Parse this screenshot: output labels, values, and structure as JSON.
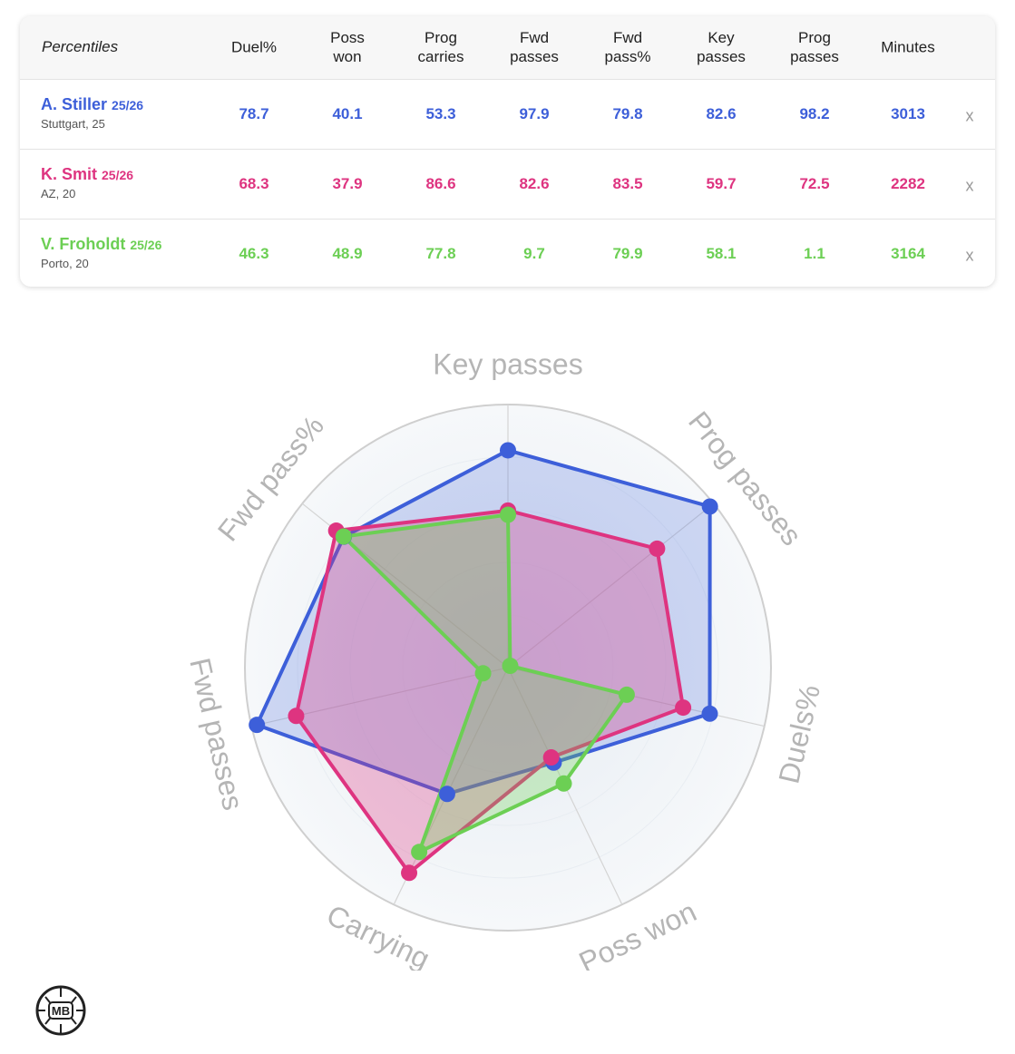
{
  "table": {
    "header_label": "Percentiles",
    "columns": [
      [
        "Duel%"
      ],
      [
        "Poss",
        "won"
      ],
      [
        "Prog",
        "carries"
      ],
      [
        "Fwd",
        "passes"
      ],
      [
        "Fwd",
        "pass%"
      ],
      [
        "Key",
        "passes"
      ],
      [
        "Prog",
        "passes"
      ],
      [
        "Minutes"
      ]
    ],
    "remove_label": "x",
    "players": [
      {
        "name": "A. Stiller",
        "season": "25/26",
        "info": "Stuttgart, 25",
        "color": "#3d5fd9",
        "values": [
          "78.7",
          "40.1",
          "53.3",
          "97.9",
          "79.8",
          "82.6",
          "98.2",
          "3013"
        ]
      },
      {
        "name": "K. Smit",
        "season": "25/26",
        "info": "AZ, 20",
        "color": "#de3480",
        "values": [
          "68.3",
          "37.9",
          "86.6",
          "82.6",
          "83.5",
          "59.7",
          "72.5",
          "2282"
        ]
      },
      {
        "name": "V. Froholdt",
        "season": "25/26",
        "info": "Porto, 20",
        "color": "#6ccf54",
        "values": [
          "46.3",
          "48.9",
          "77.8",
          "9.7",
          "79.9",
          "58.1",
          "1.1",
          "3164"
        ]
      }
    ]
  },
  "chart_data": {
    "type": "radar",
    "axes": [
      "Key passes",
      "Prog passes",
      "Duels%",
      "Poss won",
      "Carrying",
      "Fwd passes",
      "Fwd pass%"
    ],
    "range": [
      0,
      100
    ],
    "series": [
      {
        "name": "A. Stiller",
        "color": "#3d5fd9",
        "values": [
          82.6,
          98.2,
          78.7,
          40.1,
          53.3,
          97.9,
          79.8
        ]
      },
      {
        "name": "K. Smit",
        "color": "#de3480",
        "values": [
          59.7,
          72.5,
          68.3,
          37.9,
          86.6,
          82.6,
          83.5
        ]
      },
      {
        "name": "V. Froholdt",
        "color": "#6ccf54",
        "values": [
          58.1,
          1.1,
          46.3,
          48.9,
          77.8,
          9.7,
          79.9
        ]
      }
    ]
  },
  "logo": {
    "text": "MB"
  }
}
